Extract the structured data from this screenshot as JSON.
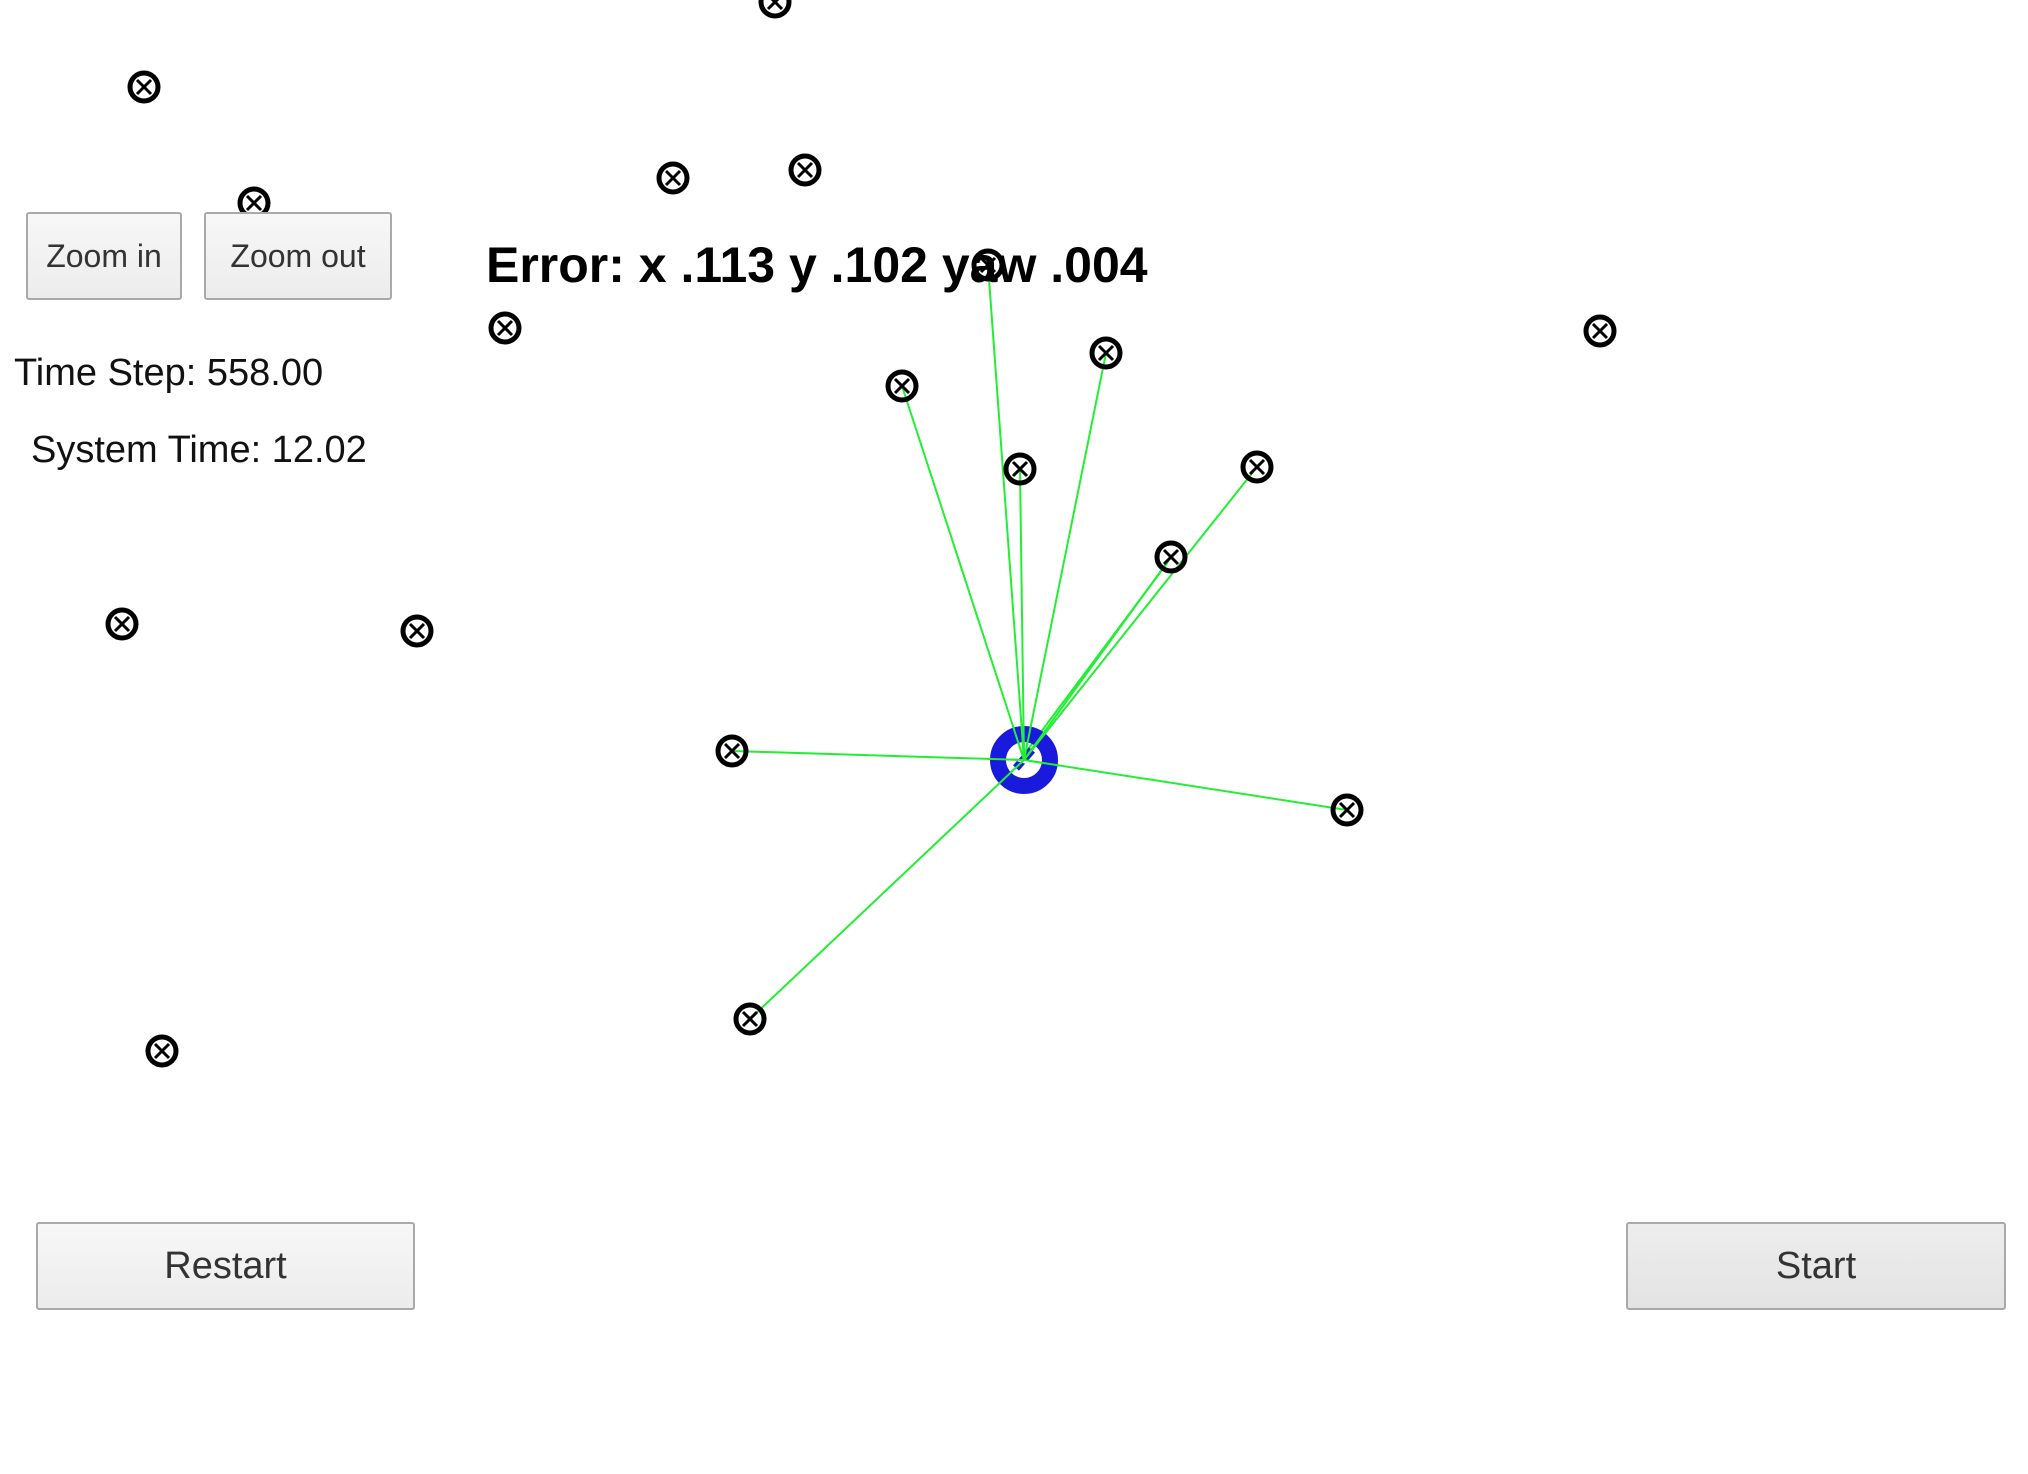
{
  "controls": {
    "zoom_in_label": "Zoom in",
    "zoom_out_label": "Zoom out",
    "restart_label": "Restart",
    "start_label": "Start"
  },
  "status": {
    "time_step": "Time Step: 558.00",
    "system_time": "System Time: 12.02",
    "error": "Error: x .113 y .102 yaw .004"
  },
  "colors": {
    "observation_line": "#22ee33",
    "vehicle": "#1a1adc",
    "landmark": "#000000"
  },
  "icons": {
    "landmark": "landmark-icon",
    "vehicle": "vehicle-icon"
  }
}
